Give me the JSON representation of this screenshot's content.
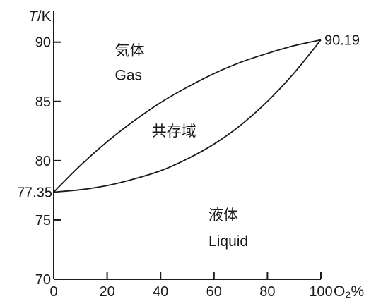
{
  "chart_data": {
    "type": "line",
    "title": "",
    "xlabel": "O₂%",
    "ylabel_italic": "T",
    "ylabel_unit": "/K",
    "xlim": [
      0,
      100
    ],
    "ylim": [
      70,
      92.6
    ],
    "x_ticks": [
      0,
      20,
      40,
      60,
      80,
      100
    ],
    "x_tick_labels": [
      "0",
      "20",
      "40",
      "60",
      "80",
      "100"
    ],
    "y_ticks": [
      70,
      75,
      80,
      85,
      90
    ],
    "y_tick_labels": [
      "70",
      "75",
      "80",
      "85",
      "90"
    ],
    "grid": false,
    "series": [
      {
        "x": [
          0,
          10,
          20,
          30,
          40,
          50,
          60,
          70,
          80,
          90,
          100
        ],
        "y": [
          77.35,
          79.6,
          81.6,
          83.35,
          84.9,
          86.2,
          87.35,
          88.3,
          89.05,
          89.7,
          90.19
        ]
      },
      {
        "x": [
          0,
          10,
          20,
          30,
          40,
          50,
          60,
          70,
          80,
          90,
          100
        ],
        "y": [
          77.35,
          77.55,
          77.9,
          78.45,
          79.15,
          80.15,
          81.4,
          83.0,
          85.0,
          87.4,
          90.19
        ]
      }
    ],
    "annotations": {
      "left_point": {
        "label": "77.35",
        "x": 0,
        "y": 77.35
      },
      "right_point": {
        "label": "90.19",
        "x": 100,
        "y": 90.19
      }
    },
    "regions": [
      {
        "id": "gas",
        "label_zh": "気体",
        "label_en": "Gas",
        "x": 25,
        "y": 89.3
      },
      {
        "id": "coexist",
        "label_zh": "共存域",
        "x": 38,
        "y": 82.5
      },
      {
        "id": "liquid",
        "label_zh": "液体",
        "label_en": "Liquid",
        "x": 77,
        "y": 75.3
      }
    ]
  },
  "colors": {
    "axis": "#1a1a1a",
    "curve": "#1a1a1a",
    "background": "#ffffff"
  }
}
